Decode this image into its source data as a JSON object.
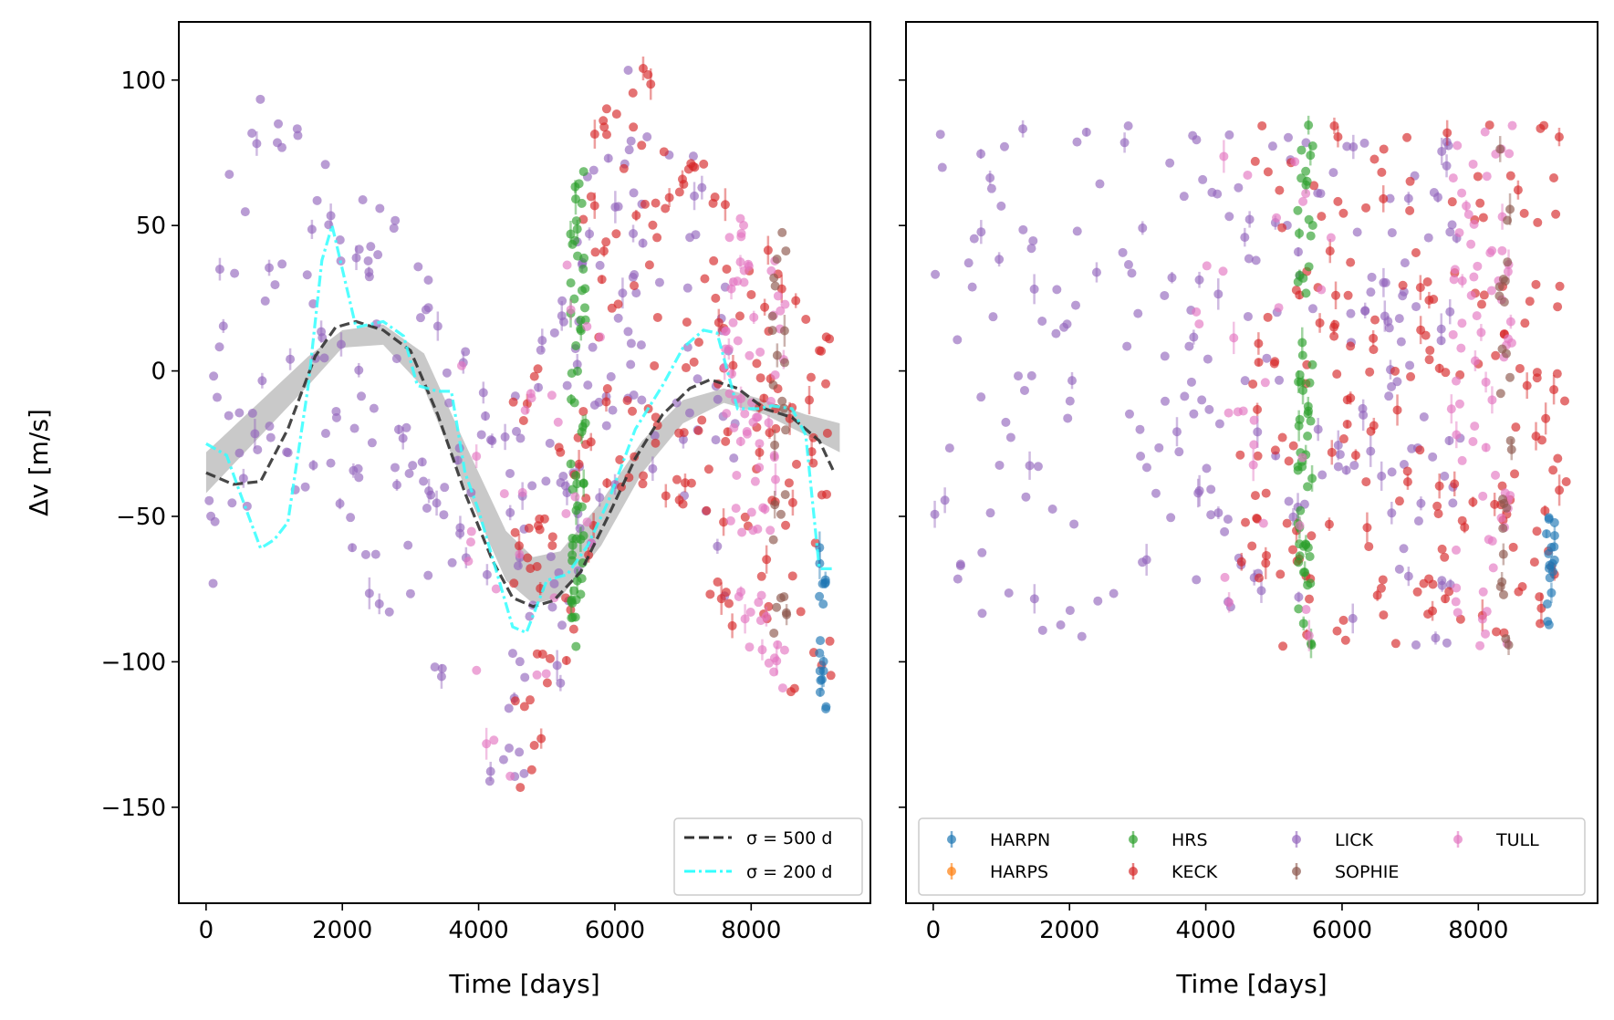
{
  "chart_data": [
    {
      "type": "scatter",
      "panel": "left",
      "xlabel": "Time [days]",
      "ylabel": "Δv [m/s]",
      "xlim": [
        -400,
        9750
      ],
      "ylim": [
        -183,
        120
      ],
      "xticks": [
        0,
        2000,
        4000,
        6000,
        8000
      ],
      "xtick_labels": [
        "0",
        "2000",
        "4000",
        "6000",
        "8000"
      ],
      "yticks": [
        100,
        50,
        0,
        -50,
        -100,
        -150
      ],
      "ytick_labels": [
        "100",
        "50",
        "0",
        "−50",
        "−100",
        "−150"
      ],
      "legend": {
        "placement": "lower-right",
        "entries": [
          {
            "label": "σ = 500 d",
            "label_html": "σ = 500 d",
            "style": "dashed",
            "color": "#333333"
          },
          {
            "label": "σ = 200 d",
            "style": "dashdot",
            "color": "#33ffff"
          }
        ]
      },
      "series": [
        {
          "name": "σ = 500 d",
          "color": "#333333",
          "x": [
            0,
            400,
            800,
            1200,
            1600,
            1900,
            2200,
            2600,
            3000,
            3400,
            3800,
            4200,
            4500,
            4800,
            5100,
            5500,
            5900,
            6300,
            6700,
            7100,
            7400,
            7800,
            8200,
            8600,
            9000,
            9200
          ],
          "y": [
            -35,
            -39,
            -38,
            -20,
            5,
            15,
            17,
            14,
            7,
            -15,
            -42,
            -65,
            -78,
            -81,
            -79,
            -69,
            -50,
            -30,
            -15,
            -6,
            -3,
            -6,
            -13,
            -16,
            -24,
            -34
          ]
        },
        {
          "name": "σ = 200 d",
          "color": "#33ffff",
          "x": [
            0,
            300,
            500,
            800,
            1000,
            1200,
            1500,
            1700,
            1850,
            2000,
            2200,
            2600,
            2900,
            3100,
            3400,
            3600,
            3800,
            4000,
            4300,
            4500,
            4700,
            5000,
            5300,
            5600,
            5900,
            6300,
            6700,
            7000,
            7300,
            7500,
            7800,
            8100,
            8300,
            8600,
            8800,
            9000,
            9200
          ],
          "y": [
            -25,
            -29,
            -42,
            -61,
            -58,
            -52,
            -5,
            38,
            50,
            35,
            15,
            17,
            12,
            -5,
            -7,
            -7,
            -35,
            -48,
            -72,
            -88,
            -90,
            -72,
            -70,
            -60,
            -45,
            -20,
            -5,
            8,
            14,
            13,
            -13,
            -13,
            -12,
            -13,
            -22,
            -68,
            -68
          ]
        }
      ],
      "gp_band": {
        "color": "#888888",
        "x": [
          0,
          1500,
          2000,
          2600,
          3200,
          3800,
          4400,
          4800,
          5200,
          5800,
          6400,
          7000,
          7600,
          8200,
          8800,
          9300
        ],
        "upper": [
          -28,
          5,
          14,
          16,
          6,
          -25,
          -55,
          -64,
          -62,
          -45,
          -24,
          -10,
          -6,
          -10,
          -15,
          -18
        ],
        "lower": [
          -42,
          -5,
          8,
          9,
          -6,
          -40,
          -72,
          -80,
          -78,
          -60,
          -35,
          -18,
          -11,
          -15,
          -22,
          -28
        ]
      },
      "instruments": [
        {
          "name": "LICK",
          "color": "#9467bd",
          "n": 260
        },
        {
          "name": "KECK",
          "color": "#d62728",
          "n": 200
        },
        {
          "name": "HRS",
          "color": "#2ca02c",
          "n": 60
        },
        {
          "name": "TULL",
          "color": "#e377c2",
          "n": 110
        },
        {
          "name": "SOPHIE",
          "color": "#8c564b",
          "n": 25
        },
        {
          "name": "HARPN",
          "color": "#1f77b4",
          "n": 18
        }
      ]
    },
    {
      "type": "scatter",
      "panel": "right",
      "xlabel": "Time [days]",
      "xlim": [
        -400,
        9750
      ],
      "ylim": [
        -183,
        120
      ],
      "xticks": [
        0,
        2000,
        4000,
        6000,
        8000
      ],
      "xtick_labels": [
        "0",
        "2000",
        "4000",
        "6000",
        "8000"
      ],
      "legend": {
        "placement": "bottom",
        "columns": 4,
        "entries": [
          {
            "label": "HARPN",
            "color": "#1f77b4"
          },
          {
            "label": "HARPS",
            "color": "#ff7f0e"
          },
          {
            "label": "HRS",
            "color": "#2ca02c"
          },
          {
            "label": "KECK",
            "color": "#d62728"
          },
          {
            "label": "LICK",
            "color": "#9467bd"
          },
          {
            "label": "SOPHIE",
            "color": "#8c564b"
          },
          {
            "label": "TULL",
            "color": "#e377c2"
          }
        ]
      },
      "instruments": [
        {
          "name": "LICK",
          "color": "#9467bd",
          "n": 230
        },
        {
          "name": "KECK",
          "color": "#d62728",
          "n": 200
        },
        {
          "name": "HRS",
          "color": "#2ca02c",
          "n": 60
        },
        {
          "name": "TULL",
          "color": "#e377c2",
          "n": 100
        },
        {
          "name": "SOPHIE",
          "color": "#8c564b",
          "n": 25
        },
        {
          "name": "HARPN",
          "color": "#1f77b4",
          "n": 18
        }
      ]
    }
  ]
}
